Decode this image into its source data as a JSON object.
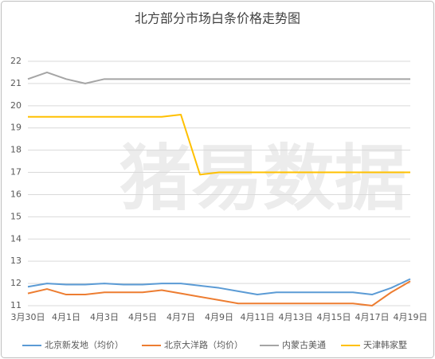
{
  "chart_data": {
    "type": "line",
    "title": "北方部分市场白条价格走势图",
    "watermark": "猪易数据",
    "categories": [
      "3月30日",
      null,
      "4月1日",
      null,
      "4月3日",
      null,
      "4月5日",
      null,
      "4月7日",
      null,
      "4月9日",
      null,
      "4月11日",
      null,
      "4月13日",
      null,
      "4月15日",
      null,
      "4月17日",
      null,
      "4月19日"
    ],
    "series": [
      {
        "name": "北京新发地（均价）",
        "color": "#5b9bd5",
        "values": [
          11.85,
          12.0,
          11.95,
          11.95,
          12.0,
          11.95,
          11.95,
          12.0,
          12.0,
          11.9,
          11.8,
          11.65,
          11.5,
          11.6,
          11.6,
          11.6,
          11.6,
          11.6,
          11.5,
          11.8,
          12.2
        ]
      },
      {
        "name": "北京大洋路（均价）",
        "color": "#ed7d31",
        "values": [
          11.55,
          11.75,
          11.5,
          11.5,
          11.6,
          11.6,
          11.6,
          11.7,
          11.55,
          11.4,
          11.25,
          11.1,
          11.1,
          11.1,
          11.1,
          11.1,
          11.1,
          11.1,
          11.0,
          11.6,
          12.1
        ]
      },
      {
        "name": "内蒙古美通",
        "color": "#a5a5a5",
        "values": [
          21.2,
          21.5,
          21.2,
          21.0,
          21.2,
          21.2,
          21.2,
          21.2,
          21.2,
          21.2,
          21.2,
          21.2,
          21.2,
          21.2,
          21.2,
          21.2,
          21.2,
          21.2,
          21.2,
          21.2,
          21.2
        ]
      },
      {
        "name": "天津韩家墅",
        "color": "#ffc000",
        "values": [
          19.5,
          19.5,
          19.5,
          19.5,
          19.5,
          19.5,
          19.5,
          19.5,
          19.6,
          16.9,
          17.0,
          17.0,
          17.0,
          17.0,
          17.0,
          17.0,
          17.0,
          17.0,
          17.0,
          17.0,
          17.0
        ]
      }
    ],
    "ylim": [
      11,
      22
    ],
    "yticks": [
      11,
      12,
      13,
      14,
      15,
      16,
      17,
      18,
      19,
      20,
      21,
      22
    ],
    "grid": true,
    "legend": "bottom"
  }
}
